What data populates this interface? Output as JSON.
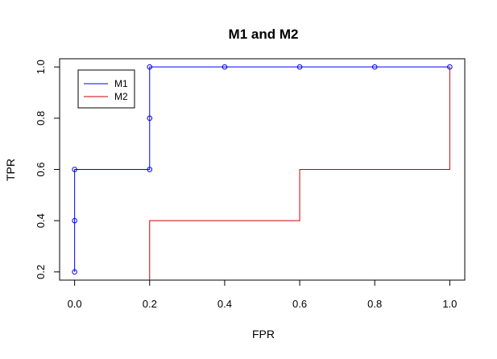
{
  "chart_data": {
    "type": "line",
    "title": "M1 and M2",
    "xlabel": "FPR",
    "ylabel": "TPR",
    "xlim": [
      -0.04,
      1.04
    ],
    "ylim": [
      0.168,
      1.032
    ],
    "x_ticks": [
      "0.0",
      "0.2",
      "0.4",
      "0.6",
      "0.8",
      "1.0"
    ],
    "y_ticks": [
      "0.2",
      "0.4",
      "0.6",
      "0.8",
      "1.0"
    ],
    "grid": false,
    "legend_position": "top-left",
    "series": [
      {
        "name": "M1",
        "color": "#0000ff",
        "step": true,
        "markers": "open-circle",
        "points": [
          {
            "x": 0.0,
            "y": 0.2
          },
          {
            "x": 0.0,
            "y": 0.4
          },
          {
            "x": 0.0,
            "y": 0.6
          },
          {
            "x": 0.2,
            "y": 0.6
          },
          {
            "x": 0.2,
            "y": 0.8
          },
          {
            "x": 0.2,
            "y": 1.0
          },
          {
            "x": 0.4,
            "y": 1.0
          },
          {
            "x": 0.6,
            "y": 1.0
          },
          {
            "x": 0.8,
            "y": 1.0
          },
          {
            "x": 1.0,
            "y": 1.0
          }
        ]
      },
      {
        "name": "M2",
        "color": "#cc0000",
        "step": true,
        "markers": "none",
        "points": [
          {
            "x": 0.2,
            "y": 0.168
          },
          {
            "x": 0.2,
            "y": 0.4
          },
          {
            "x": 0.6,
            "y": 0.4
          },
          {
            "x": 0.6,
            "y": 0.6
          },
          {
            "x": 1.0,
            "y": 0.6
          },
          {
            "x": 1.0,
            "y": 1.0
          }
        ]
      }
    ]
  }
}
